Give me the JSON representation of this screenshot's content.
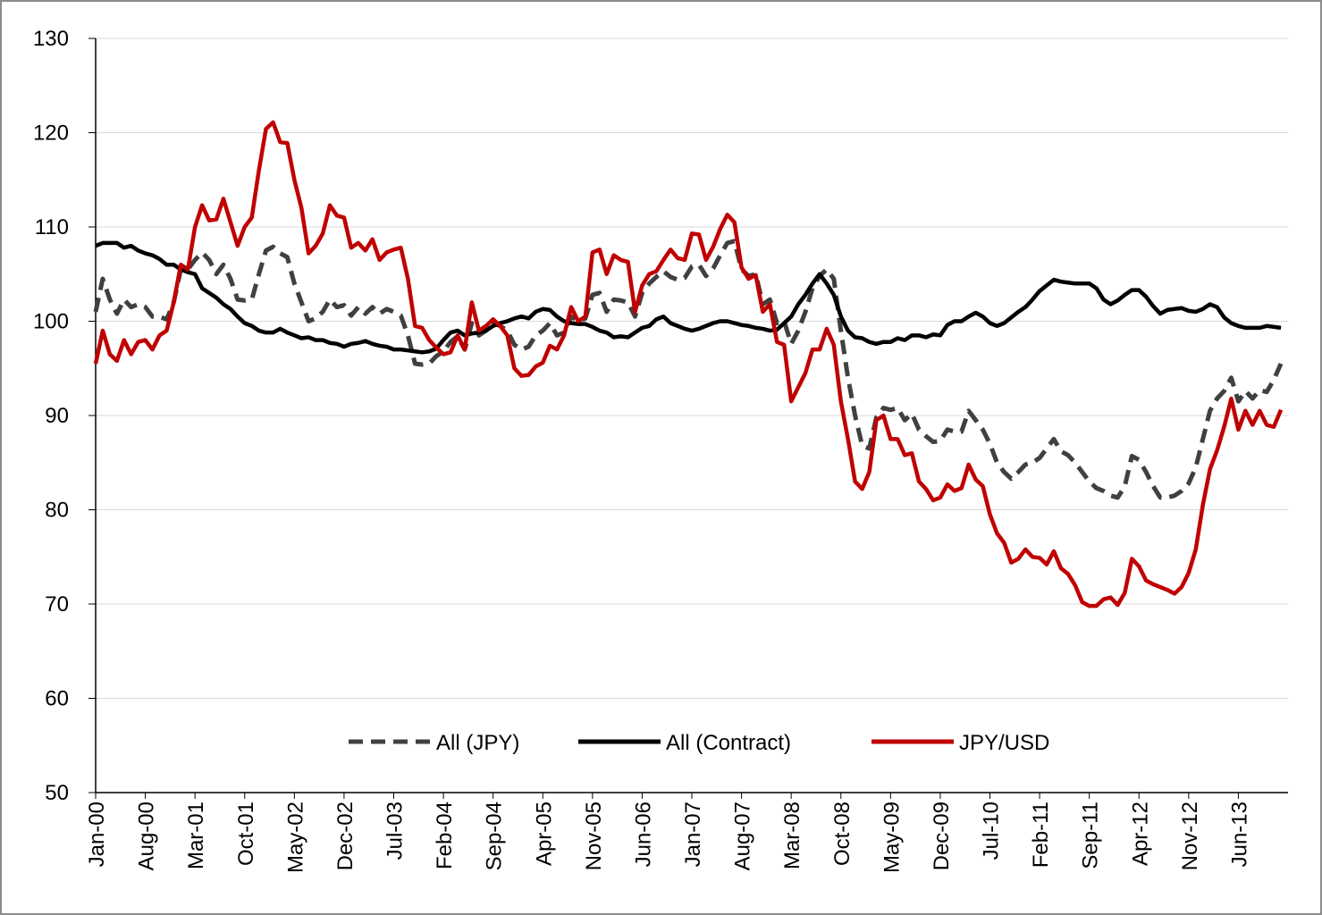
{
  "chart_data": {
    "type": "line",
    "categories": [
      "Jan-00",
      null,
      null,
      null,
      null,
      null,
      null,
      "Aug-00",
      null,
      null,
      null,
      null,
      null,
      null,
      "Mar-01",
      null,
      null,
      null,
      null,
      null,
      null,
      "Oct-01",
      null,
      null,
      null,
      null,
      null,
      null,
      "May-02",
      null,
      null,
      null,
      null,
      null,
      null,
      "Dec-02",
      null,
      null,
      null,
      null,
      null,
      null,
      "Jul-03",
      null,
      null,
      null,
      null,
      null,
      null,
      "Feb-04",
      null,
      null,
      null,
      null,
      null,
      null,
      "Sep-04",
      null,
      null,
      null,
      null,
      null,
      null,
      "Apr-05",
      null,
      null,
      null,
      null,
      null,
      null,
      "Nov-05",
      null,
      null,
      null,
      null,
      null,
      null,
      "Jun-06",
      null,
      null,
      null,
      null,
      null,
      null,
      "Jan-07",
      null,
      null,
      null,
      null,
      null,
      null,
      "Aug-07",
      null,
      null,
      null,
      null,
      null,
      null,
      "Mar-08",
      null,
      null,
      null,
      null,
      null,
      null,
      "Oct-08",
      null,
      null,
      null,
      null,
      null,
      null,
      "May-09",
      null,
      null,
      null,
      null,
      null,
      null,
      "Dec-09",
      null,
      null,
      null,
      null,
      null,
      null,
      "Jul-10",
      null,
      null,
      null,
      null,
      null,
      null,
      "Feb-11",
      null,
      null,
      null,
      null,
      null,
      null,
      "Sep-11",
      null,
      null,
      null,
      null,
      null,
      null,
      "Apr-12",
      null,
      null,
      null,
      null,
      null,
      null,
      "Nov-12",
      null,
      null,
      null,
      null,
      null,
      null,
      "Jun-13",
      null,
      null,
      null,
      null,
      null,
      null
    ],
    "series": [
      {
        "name": "All (JPY)",
        "color": "#404040",
        "style": "dashed",
        "values": [
          101,
          104.5,
          102.3,
          100.8,
          102.3,
          101.5,
          101.8,
          101.5,
          100.5,
          100.5,
          100.2,
          102,
          105.5,
          105.5,
          106.5,
          107.3,
          106.5,
          105,
          106,
          104.5,
          102.3,
          102.2,
          102.3,
          105,
          107.5,
          107.9,
          107.2,
          106.8,
          104,
          102,
          100,
          100.3,
          101,
          102.3,
          101.5,
          101.7,
          100.6,
          101.5,
          100.8,
          101.5,
          100.8,
          101.3,
          101,
          100.6,
          98.5,
          95.5,
          95.4,
          95.5,
          96.3,
          96.8,
          97.8,
          98.4,
          97,
          99.8,
          98.5,
          99,
          99.8,
          99.5,
          99,
          97.5,
          97,
          97.3,
          98.5,
          99,
          99.8,
          98.5,
          98.8,
          100.5,
          100,
          100.3,
          102.8,
          103,
          101,
          102.3,
          102.2,
          102,
          100.5,
          103,
          104,
          104.7,
          105.3,
          104.7,
          104.4,
          104.6,
          105.8,
          106,
          104.8,
          105.6,
          107,
          108.3,
          108.5,
          105.5,
          104.8,
          105,
          101.8,
          102.3,
          99.8,
          100,
          97.6,
          99,
          101,
          103.5,
          104.8,
          105.5,
          104.5,
          99,
          94,
          90,
          86.8,
          86.5,
          89.8,
          90.8,
          90.6,
          90.8,
          89.5,
          90.2,
          88.5,
          87.8,
          87.2,
          87.3,
          88.5,
          88.3,
          88.3,
          90.5,
          89.5,
          88.5,
          87,
          85,
          84,
          83.3,
          84,
          84.8,
          85,
          85.5,
          86.5,
          87.5,
          86.2,
          85.8,
          85,
          84,
          83,
          82.3,
          82,
          81.5,
          81.3,
          82.5,
          85.7,
          85.3,
          84,
          82.5,
          81.3,
          81.3,
          81.5,
          82,
          82.8,
          84.5,
          87.5,
          90.5,
          91.8,
          92.6,
          94,
          91.5,
          92.6,
          91.8,
          92.7,
          92.5,
          93.8,
          95.5
        ]
      },
      {
        "name": "All (Contract)",
        "color": "#000000",
        "style": "solid",
        "values": [
          108,
          108.3,
          108.3,
          108.3,
          107.8,
          108,
          107.5,
          107.2,
          107,
          106.6,
          106,
          106,
          105.5,
          105.2,
          105,
          103.5,
          103,
          102.5,
          101.8,
          101.3,
          100.5,
          99.8,
          99.5,
          99,
          98.8,
          98.8,
          99.2,
          98.8,
          98.5,
          98.2,
          98.3,
          98,
          98,
          97.7,
          97.6,
          97.3,
          97.6,
          97.7,
          97.9,
          97.6,
          97.4,
          97.3,
          97,
          97,
          96.9,
          96.8,
          96.7,
          96.8,
          97.1,
          98,
          98.8,
          99,
          98.5,
          98.7,
          98.8,
          99,
          99.5,
          99.8,
          100,
          100.3,
          100.5,
          100.3,
          101,
          101.3,
          101.2,
          100.5,
          100,
          99.8,
          99.7,
          99.7,
          99.4,
          99,
          98.8,
          98.3,
          98.4,
          98.3,
          98.8,
          99.3,
          99.5,
          100.2,
          100.5,
          99.8,
          99.5,
          99.2,
          99,
          99.2,
          99.5,
          99.8,
          100,
          100,
          99.8,
          99.6,
          99.5,
          99.3,
          99.2,
          99,
          99.1,
          99.8,
          100.5,
          101.8,
          102.8,
          104,
          105,
          104,
          102.8,
          100.5,
          99,
          98.3,
          98.2,
          97.8,
          97.6,
          97.8,
          97.8,
          98.2,
          98,
          98.5,
          98.5,
          98.3,
          98.6,
          98.5,
          99.6,
          100,
          100,
          100.5,
          100.9,
          100.5,
          99.8,
          99.5,
          99.8,
          100.4,
          101,
          101.5,
          102.3,
          103.2,
          103.8,
          104.4,
          104.2,
          104.1,
          104,
          104,
          104,
          103.5,
          102.3,
          101.8,
          102.2,
          102.8,
          103.3,
          103.3,
          102.6,
          101.6,
          100.8,
          101.2,
          101.3,
          101.4,
          101.1,
          101,
          101.3,
          101.8,
          101.5,
          100.4,
          99.8,
          99.5,
          99.3,
          99.3,
          99.3,
          99.5,
          99.4,
          99.3
        ]
      },
      {
        "name": "JPY/USD",
        "color": "#c00000",
        "style": "solid",
        "values": [
          95.5,
          99,
          96.5,
          95.8,
          98,
          96.5,
          97.8,
          98,
          97,
          98.5,
          99,
          102,
          106,
          105.5,
          110,
          112.3,
          110.7,
          110.8,
          113,
          110.5,
          108,
          110,
          111,
          116,
          120.4,
          121.1,
          119,
          118.9,
          115,
          112,
          107.2,
          108,
          109.3,
          112.3,
          111.2,
          111,
          107.8,
          108.3,
          107.5,
          108.7,
          106.5,
          107.3,
          107.6,
          107.8,
          104.5,
          99.5,
          99.3,
          98,
          97.2,
          96.5,
          96.7,
          98.5,
          97,
          102,
          99,
          99.5,
          100.2,
          99.5,
          98.5,
          95,
          94.2,
          94.3,
          95.2,
          95.6,
          97.4,
          97,
          98.5,
          101.5,
          100,
          100.5,
          107.3,
          107.6,
          105,
          107,
          106.5,
          106.3,
          101,
          103.8,
          105,
          105.3,
          106.5,
          107.6,
          106.7,
          106.5,
          109.3,
          109.2,
          106.5,
          107.9,
          109.8,
          111.3,
          110.5,
          105.7,
          104.5,
          104.9,
          101,
          101.8,
          97.8,
          97.5,
          91.5,
          93,
          94.5,
          97,
          97,
          99.2,
          97.5,
          91.5,
          87.5,
          83,
          82.2,
          84,
          89.5,
          90,
          87.5,
          87.5,
          85.8,
          86,
          83,
          82.2,
          81,
          81.3,
          82.7,
          82,
          82.3,
          84.8,
          83.2,
          82.5,
          79.5,
          77.5,
          76.5,
          74.4,
          74.8,
          75.8,
          75,
          74.9,
          74.2,
          75.6,
          73.8,
          73.2,
          72,
          70.2,
          69.8,
          69.8,
          70.5,
          70.7,
          69.9,
          71.2,
          74.8,
          74,
          72.5,
          72.1,
          71.8,
          71.5,
          71.1,
          71.8,
          73.3,
          75.8,
          80.5,
          84.3,
          86.3,
          88.8,
          91.8,
          88.5,
          90.5,
          89,
          90.5,
          89,
          88.8,
          90.6
        ]
      }
    ],
    "ylim": [
      50,
      130
    ],
    "yticks": [
      50,
      60,
      70,
      80,
      90,
      100,
      110,
      120,
      130
    ],
    "grid": true,
    "legend": "bottom"
  }
}
